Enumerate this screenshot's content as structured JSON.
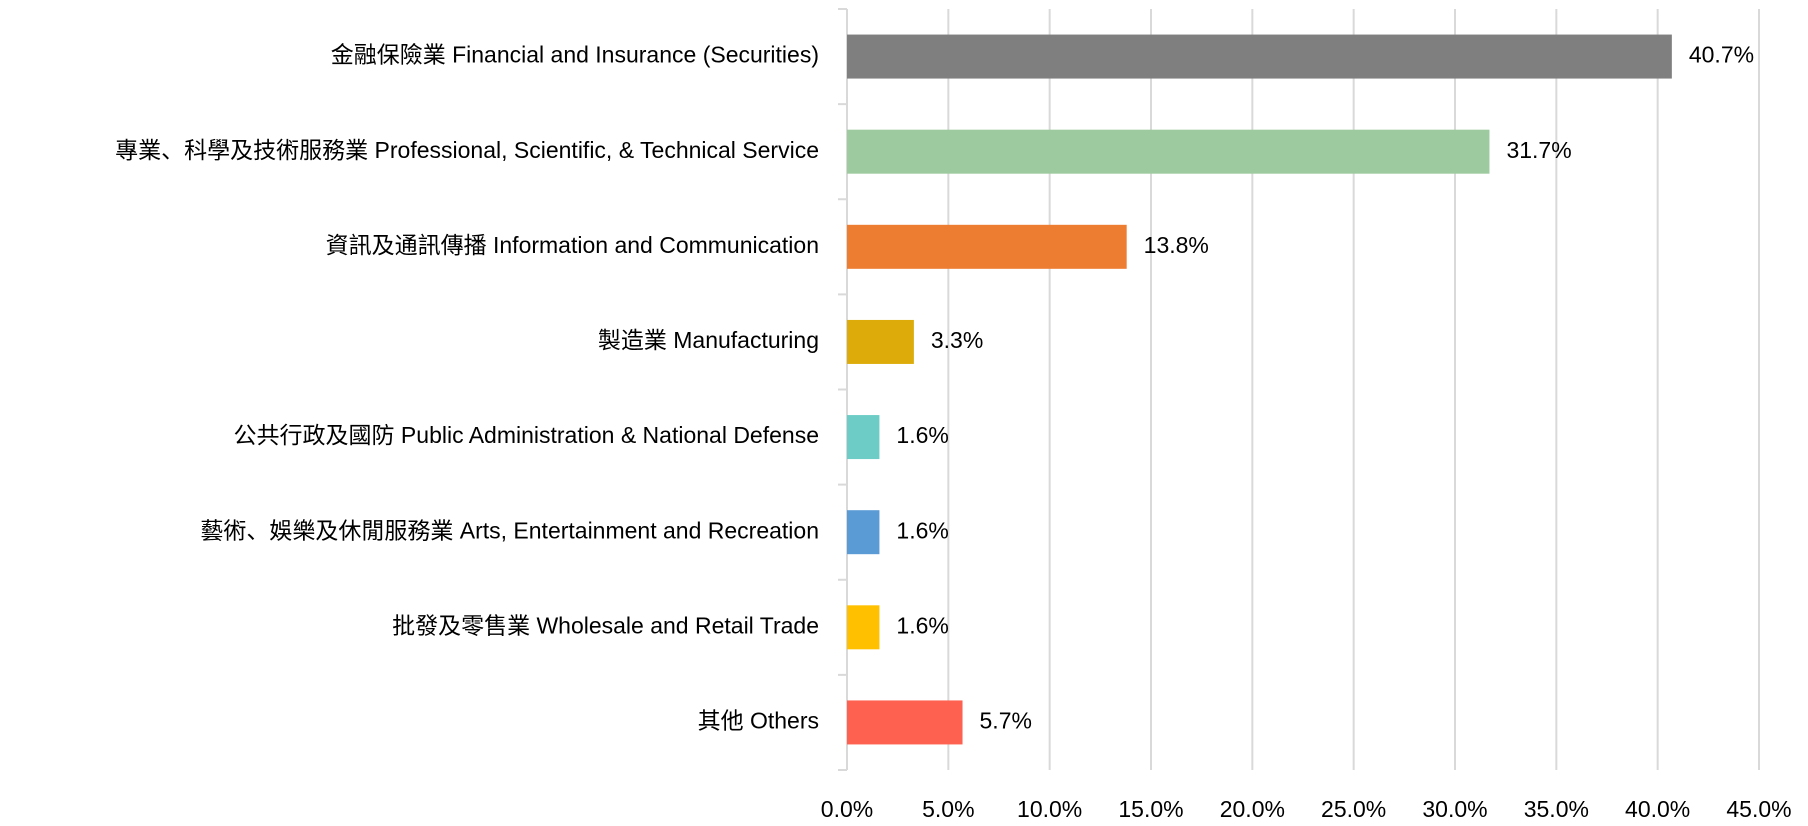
{
  "chart_data": {
    "type": "barh",
    "categories": [
      "金融保險業 Financial and Insurance (Securities)",
      "專業、科學及技術服務業 Professional, Scientific, & Technical Service",
      "資訊及通訊傳播 Information and Communication",
      "製造業 Manufacturing",
      "公共行政及國防 Public Administration & National Defense",
      "藝術、娛樂及休閒服務業 Arts, Entertainment and Recreation",
      "批發及零售業 Wholesale and Retail Trade",
      "其他 Others"
    ],
    "values": [
      40.7,
      31.7,
      13.8,
      3.3,
      1.6,
      1.6,
      1.6,
      5.7
    ],
    "value_labels": [
      "40.7%",
      "31.7%",
      "13.8%",
      "3.3%",
      "1.6%",
      "1.6%",
      "1.6%",
      "5.7%"
    ],
    "colors": [
      "#7f7f7f",
      "#9dcb9f",
      "#ed7d31",
      "#ddac0a",
      "#6dcdc6",
      "#5b9bd5",
      "#ffc000",
      "#ff6150"
    ],
    "xlim": [
      0,
      45
    ],
    "xticks": [
      {
        "value": 0,
        "label": "0.0%"
      },
      {
        "value": 5,
        "label": "5.0%"
      },
      {
        "value": 10,
        "label": "10.0%"
      },
      {
        "value": 15,
        "label": "15.0%"
      },
      {
        "value": 20,
        "label": "20.0%"
      },
      {
        "value": 25,
        "label": "25.0%"
      },
      {
        "value": 30,
        "label": "30.0%"
      },
      {
        "value": 35,
        "label": "35.0%"
      },
      {
        "value": 40,
        "label": "40.0%"
      },
      {
        "value": 45,
        "label": "45.0%"
      }
    ],
    "grid": true
  }
}
